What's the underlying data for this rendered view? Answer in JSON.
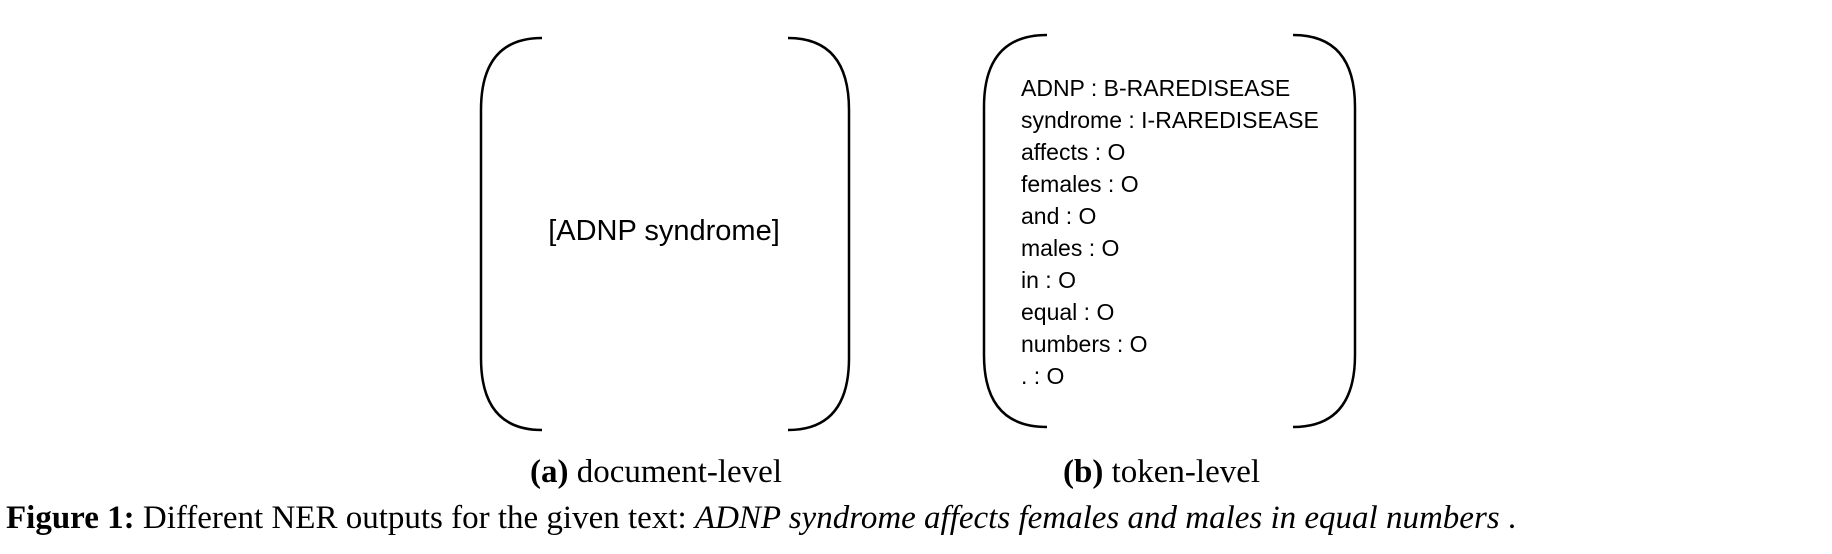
{
  "panel_a": {
    "content": "[ADNP syndrome]",
    "caption_label": "(a)",
    "caption_text": "document-level"
  },
  "panel_b": {
    "tokens": [
      "ADNP : B-RAREDISEASE",
      "syndrome : I-RAREDISEASE",
      "affects : O",
      "females : O",
      "and : O",
      "males : O",
      "in : O",
      "equal : O",
      "numbers : O",
      ". : O"
    ],
    "caption_label": "(b)",
    "caption_text": "token-level"
  },
  "figure_caption": {
    "label": "Figure 1:",
    "text": "Different NER outputs for the given text:",
    "example": "ADNP syndrome affects females and males in equal numbers",
    "end": "."
  }
}
